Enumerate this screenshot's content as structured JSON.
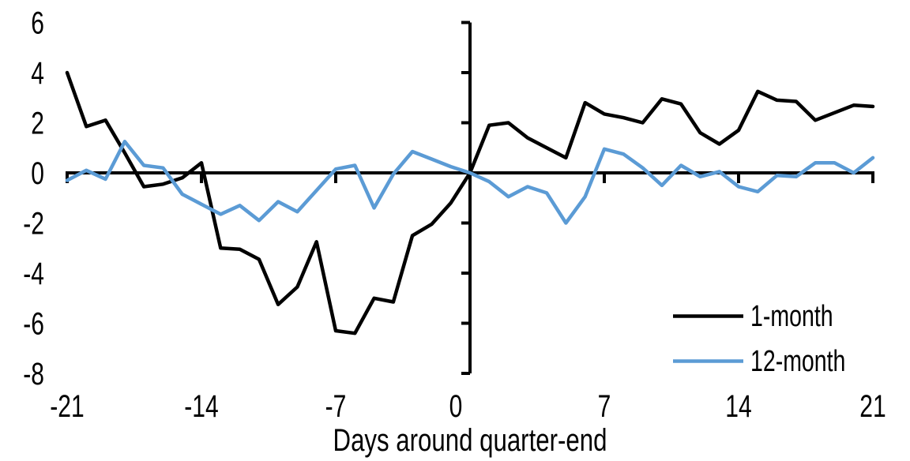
{
  "chart_data": {
    "type": "line",
    "title": "",
    "xlabel": "Days around quarter-end",
    "ylabel": "",
    "xlim": [
      -21,
      21
    ],
    "ylim": [
      -8,
      6
    ],
    "x_ticks": [
      -21,
      -14,
      -7,
      0,
      7,
      14,
      21
    ],
    "y_ticks": [
      6,
      4,
      2,
      0,
      -2,
      -4,
      -6,
      -8
    ],
    "grid": false,
    "legend_position": "inside-bottom-right",
    "axis_color": "#000000",
    "x": [
      -21,
      -20,
      -19,
      -18,
      -17,
      -16,
      -15,
      -14,
      -13,
      -12,
      -11,
      -10,
      -9,
      -8,
      -7,
      -6,
      -5,
      -4,
      -3,
      -2,
      -1,
      0,
      1,
      2,
      3,
      4,
      5,
      6,
      7,
      8,
      9,
      10,
      11,
      12,
      13,
      14,
      15,
      16,
      17,
      18,
      19,
      20,
      21
    ],
    "series": [
      {
        "name": "1-month",
        "color": "#000000",
        "values": [
          4.0,
          1.85,
          2.1,
          0.8,
          -0.55,
          -0.45,
          -0.2,
          0.4,
          -3.0,
          -3.05,
          -3.45,
          -5.25,
          -4.55,
          -2.75,
          -6.3,
          -6.4,
          -5.0,
          -5.15,
          -2.5,
          -2.05,
          -1.2,
          0,
          1.9,
          2.0,
          1.4,
          1.0,
          0.6,
          2.8,
          2.35,
          2.2,
          2.0,
          2.95,
          2.75,
          1.6,
          1.15,
          1.7,
          3.25,
          2.9,
          2.85,
          2.1,
          2.4,
          2.7,
          2.65
        ]
      },
      {
        "name": "12-month",
        "color": "#5B9BD5",
        "values": [
          -0.3,
          0.1,
          -0.25,
          1.25,
          0.3,
          0.2,
          -0.85,
          -1.25,
          -1.65,
          -1.3,
          -1.9,
          -1.15,
          -1.55,
          -0.7,
          0.15,
          0.3,
          -1.4,
          -0.05,
          0.85,
          0.55,
          0.25,
          0,
          -0.35,
          -0.95,
          -0.55,
          -0.8,
          -2.0,
          -0.95,
          0.95,
          0.75,
          0.2,
          -0.5,
          0.3,
          -0.15,
          0.05,
          -0.55,
          -0.75,
          -0.1,
          -0.15,
          0.4,
          0.4,
          0.0,
          0.6
        ]
      }
    ]
  }
}
